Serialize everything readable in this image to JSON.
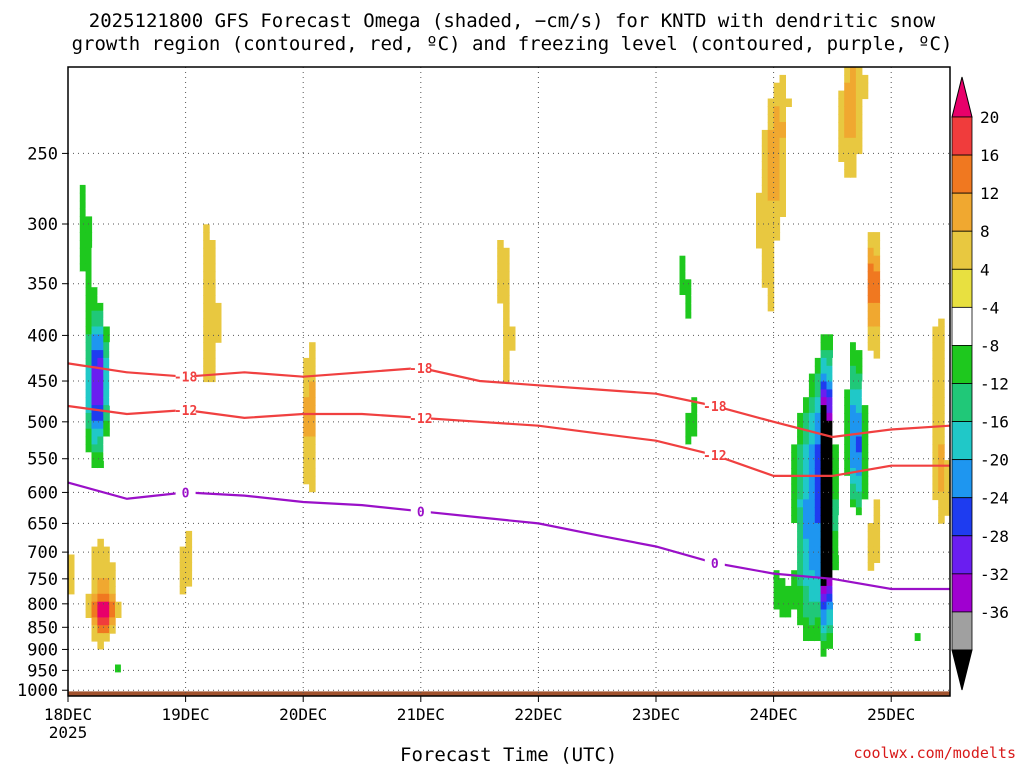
{
  "title": {
    "line1": "2025121800 GFS Forecast Omega (shaded, −cm/s) for KNTD with dendritic snow",
    "line2": "growth region (contoured, red, ºC) and freezing level (contoured, purple, ºC)"
  },
  "credit": "coolwx.com/modelts",
  "chart_data": {
    "type": "heatmap",
    "xlabel": "Forecast Time (UTC)",
    "ylabel": "",
    "x_ticks": [
      "18DEC\n2025",
      "19DEC",
      "20DEC",
      "21DEC",
      "22DEC",
      "23DEC",
      "24DEC",
      "25DEC"
    ],
    "xlim_days": [
      0,
      7.5
    ],
    "y_ticks": [
      250,
      300,
      350,
      400,
      450,
      500,
      550,
      600,
      650,
      700,
      750,
      800,
      850,
      900,
      950,
      1000
    ],
    "ylim": [
      200,
      1015
    ],
    "colorbar": {
      "levels": [
        20,
        16,
        12,
        8,
        4,
        -4,
        -8,
        -12,
        -16,
        -20,
        -24,
        -28,
        -32,
        -36
      ],
      "colors": [
        "#e8006a",
        "#f03c3c",
        "#f07820",
        "#f0a830",
        "#e8c840",
        "#e8e040",
        "#ffffff",
        "#1ec81e",
        "#20c878",
        "#20c8c8",
        "#1e96f0",
        "#1e3cf0",
        "#6a1ef0",
        "#a000d0",
        "#a0a0a0",
        "#000000"
      ]
    },
    "contours": {
      "dgz_minus18": {
        "label": "-18",
        "color": "#f04040",
        "x_days": [
          0,
          0.5,
          1,
          1.5,
          2,
          2.5,
          3,
          3.5,
          4,
          4.5,
          5,
          5.5,
          6,
          6.5,
          7,
          7.5
        ],
        "p": [
          430,
          440,
          445,
          440,
          445,
          440,
          435,
          450,
          455,
          460,
          465,
          480,
          500,
          520,
          510,
          505
        ]
      },
      "dgz_minus12": {
        "label": "-12",
        "color": "#f04040",
        "x_days": [
          0,
          0.5,
          1,
          1.5,
          2,
          2.5,
          3,
          3.5,
          4,
          4.5,
          5,
          5.5,
          6,
          6.5,
          7,
          7.5
        ],
        "p": [
          480,
          490,
          485,
          495,
          490,
          490,
          495,
          500,
          505,
          515,
          525,
          545,
          575,
          575,
          560,
          560
        ]
      },
      "freezing_0": {
        "label": "0",
        "color": "#9a10c8",
        "x_days": [
          0,
          0.5,
          1,
          1.5,
          2,
          2.5,
          3,
          3.5,
          4,
          4.5,
          5,
          5.5,
          6,
          6.5,
          7,
          7.5
        ],
        "p": [
          585,
          610,
          600,
          605,
          615,
          620,
          630,
          640,
          650,
          670,
          690,
          720,
          740,
          750,
          770,
          770
        ]
      }
    },
    "omega_features": [
      {
        "x_days": 0.25,
        "p_center": 450,
        "value": -28,
        "desc": "upward motion core"
      },
      {
        "x_days": 0.3,
        "p_center": 820,
        "value": 16,
        "desc": "downward motion"
      },
      {
        "x_days": 6.45,
        "p_center": 620,
        "value": -36,
        "desc": "strong upward motion core"
      },
      {
        "x_days": 6.0,
        "p_center": 320,
        "value": 12,
        "desc": "downward motion aloft"
      }
    ],
    "surface_layer": "brown"
  }
}
